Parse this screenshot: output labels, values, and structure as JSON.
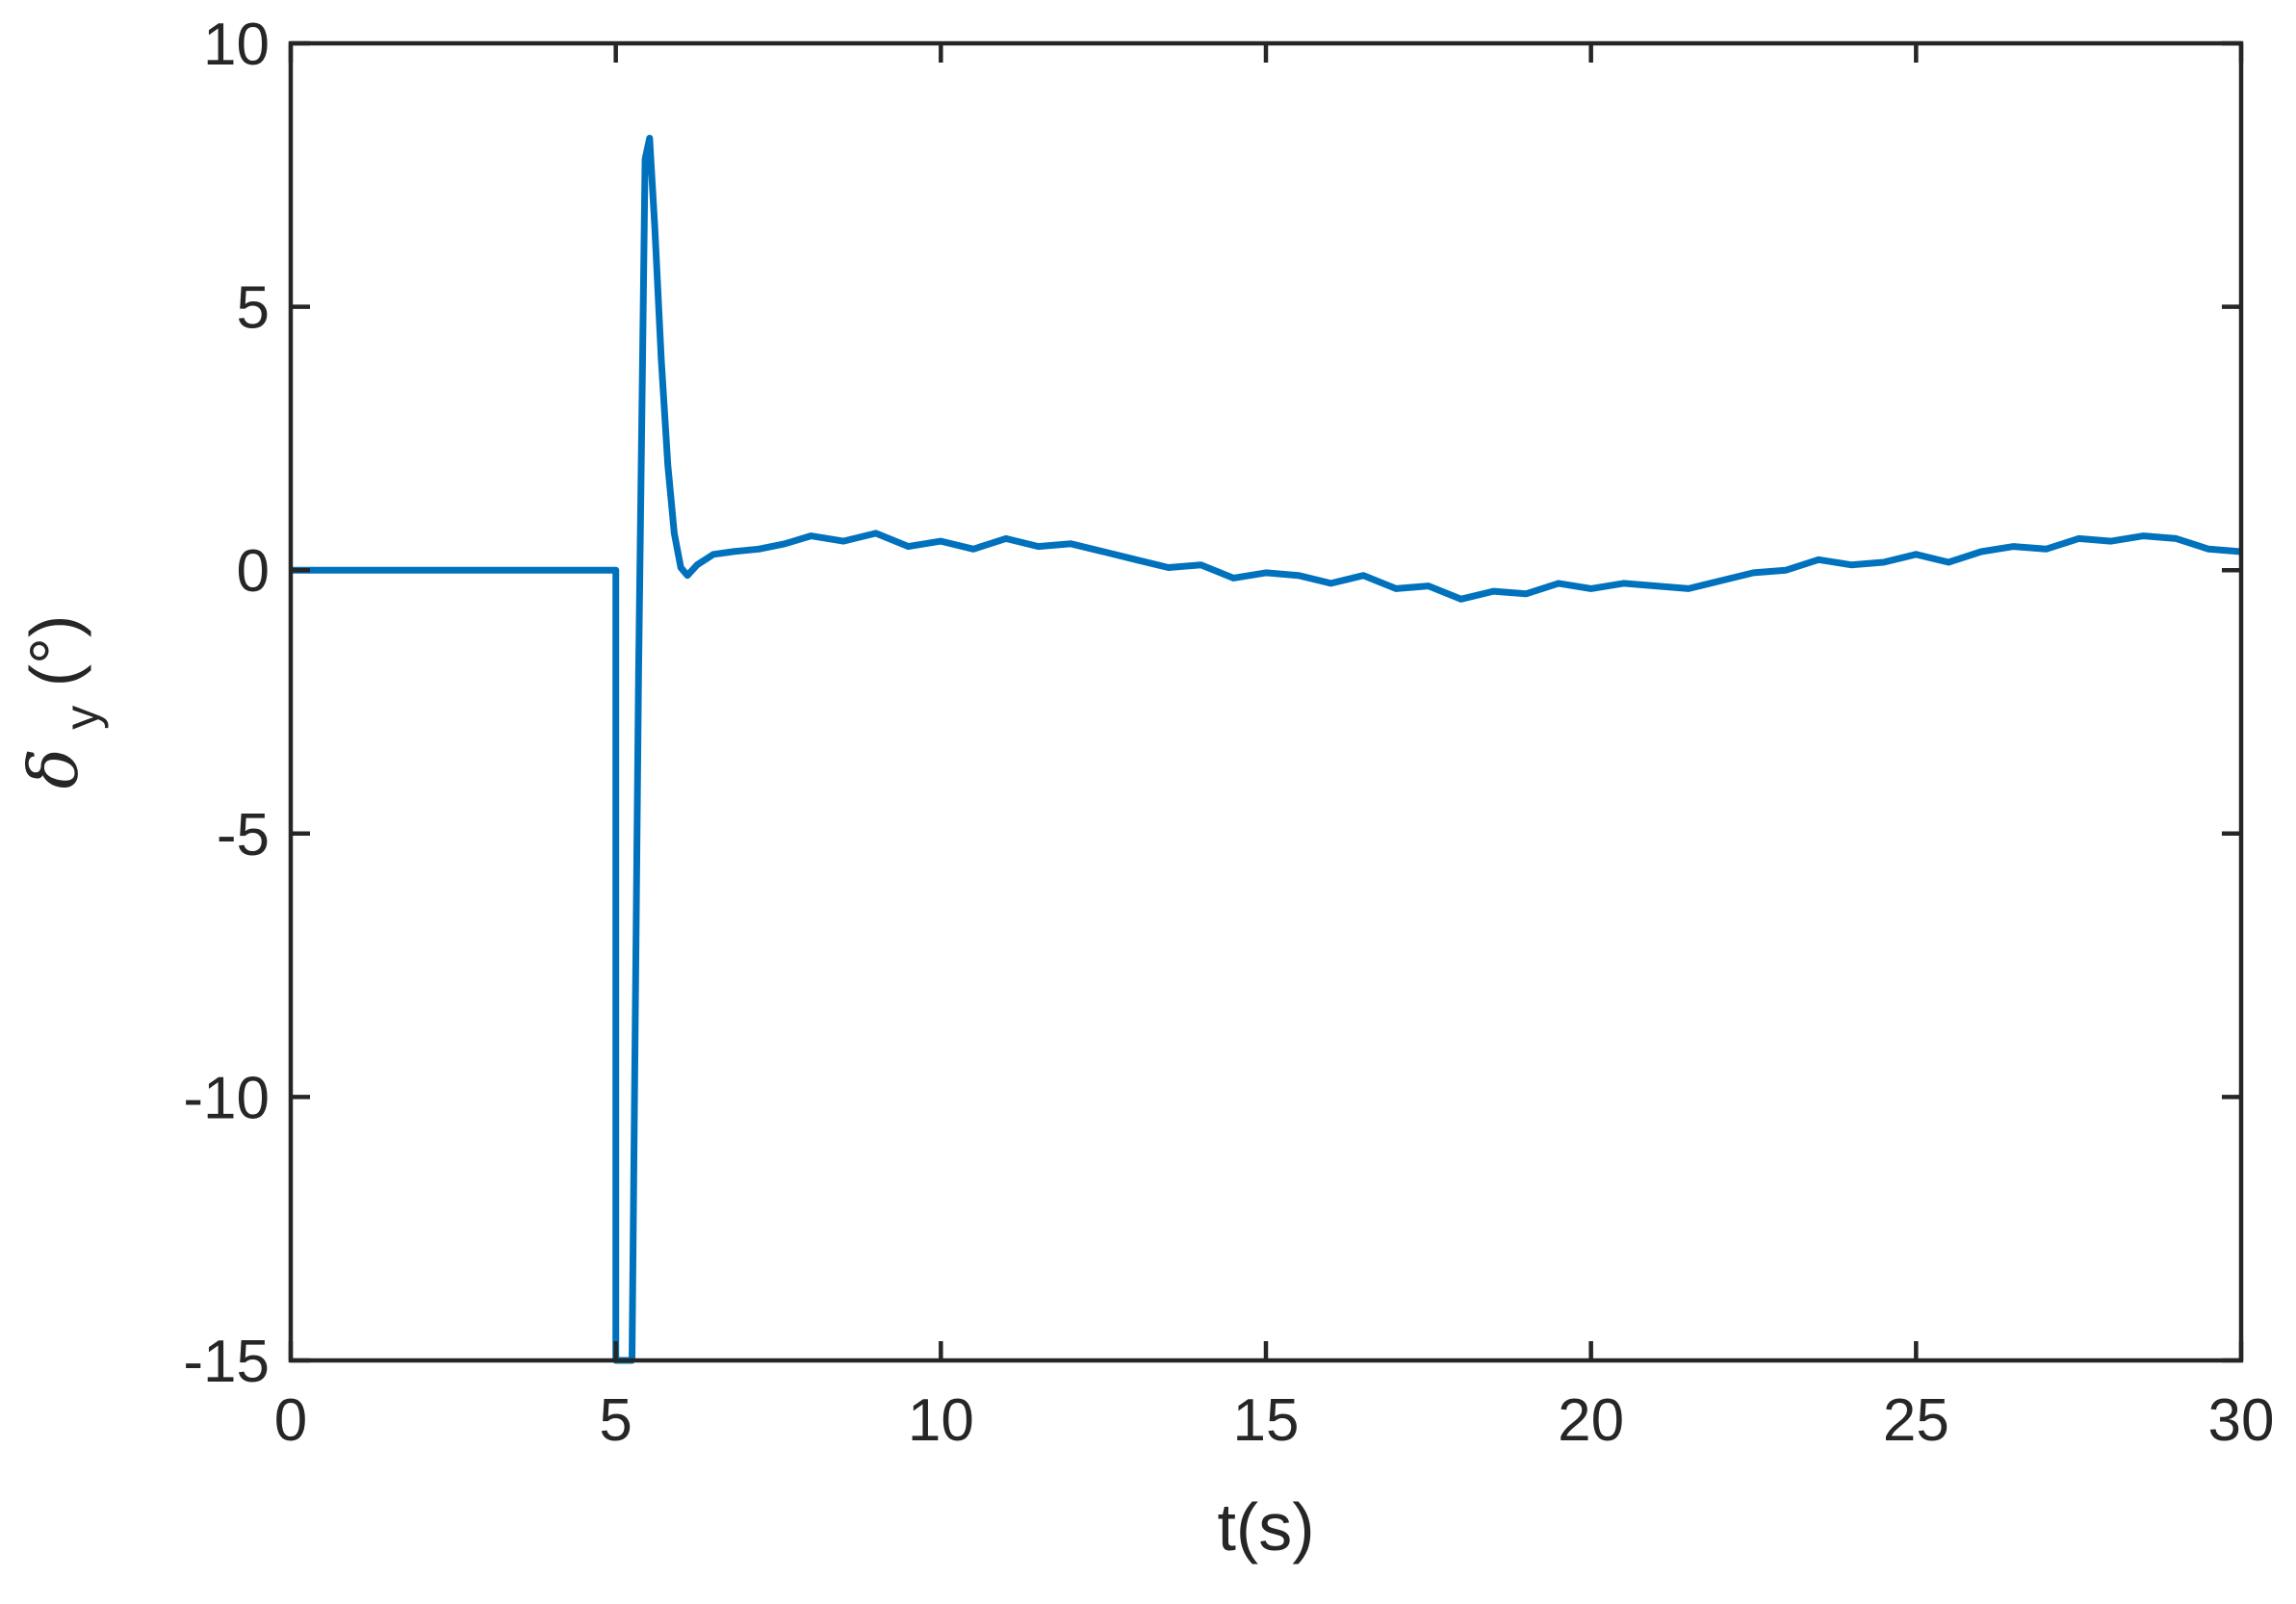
{
  "chart_data": {
    "type": "line",
    "title": "",
    "xlabel": "t(s)",
    "ylabel": {
      "symbol": "δ",
      "subscript": "y",
      "unit": "(°)"
    },
    "xlim": [
      0,
      30
    ],
    "ylim": [
      -15,
      10
    ],
    "xticks": [
      0,
      5,
      10,
      15,
      20,
      25,
      30
    ],
    "yticks": [
      -15,
      -10,
      -5,
      0,
      5,
      10
    ],
    "xtick_labels": [
      "0",
      "5",
      "10",
      "15",
      "20",
      "25",
      "30"
    ],
    "ytick_labels": [
      "-15",
      "-10",
      "-5",
      "0",
      "5",
      "10"
    ],
    "grid": false,
    "box": true,
    "series": [
      {
        "color": "#0072BD",
        "x": [
          0,
          5.0,
          5.0,
          5.25,
          5.35,
          5.45,
          5.52,
          5.6,
          5.7,
          5.8,
          5.9,
          6.0,
          6.1,
          6.25,
          6.5,
          6.8,
          7.2,
          7.6,
          8.0,
          8.5,
          9.0,
          9.5,
          10.0,
          10.5,
          11.0,
          11.5,
          12.0,
          12.5,
          13.0,
          13.5,
          14.0,
          14.5,
          15.0,
          15.5,
          16.0,
          16.5,
          17.0,
          17.5,
          18.0,
          18.5,
          19.0,
          19.5,
          20.0,
          20.5,
          21.0,
          21.5,
          22.0,
          22.5,
          23.0,
          23.5,
          24.0,
          24.5,
          25.0,
          25.5,
          26.0,
          26.5,
          27.0,
          27.5,
          28.0,
          28.5,
          29.0,
          29.5,
          30.0
        ],
        "y": [
          0,
          0,
          -15,
          -15,
          -2.0,
          7.8,
          8.2,
          6.5,
          4.0,
          2.0,
          0.7,
          0.05,
          -0.1,
          0.1,
          0.3,
          0.35,
          0.4,
          0.5,
          0.65,
          0.55,
          0.7,
          0.45,
          0.55,
          0.4,
          0.6,
          0.45,
          0.5,
          0.35,
          0.2,
          0.05,
          0.1,
          -0.15,
          -0.05,
          -0.1,
          -0.25,
          -0.1,
          -0.35,
          -0.3,
          -0.55,
          -0.4,
          -0.45,
          -0.25,
          -0.35,
          -0.25,
          -0.3,
          -0.35,
          -0.2,
          -0.05,
          0.0,
          0.2,
          0.1,
          0.15,
          0.3,
          0.15,
          0.35,
          0.45,
          0.4,
          0.6,
          0.55,
          0.65,
          0.6,
          0.4,
          0.35
        ]
      }
    ]
  }
}
